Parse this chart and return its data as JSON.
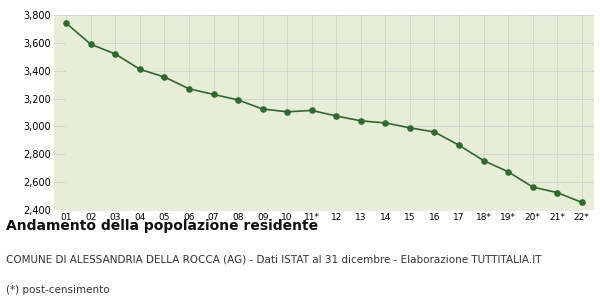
{
  "x_labels": [
    "01",
    "02",
    "03",
    "04",
    "05",
    "06",
    "07",
    "08",
    "09",
    "10",
    "11*",
    "12",
    "13",
    "14",
    "15",
    "16",
    "17",
    "18*",
    "19*",
    "20*",
    "21*",
    "22*"
  ],
  "values": [
    3740,
    3590,
    3520,
    3410,
    3355,
    3270,
    3230,
    3190,
    3125,
    3105,
    3115,
    3075,
    3040,
    3025,
    2990,
    2960,
    2865,
    2755,
    2675,
    2565,
    2525,
    2455
  ],
  "line_color": "#2d6a2d",
  "fill_color": "#e8edd8",
  "dot_color": "#2d6a2d",
  "bg_color": "#ffffff",
  "grid_color": "#cccccc",
  "ylim": [
    2400,
    3800
  ],
  "yticks": [
    2400,
    2600,
    2800,
    3000,
    3200,
    3400,
    3600,
    3800
  ],
  "title": "Andamento della popolazione residente",
  "subtitle": "COMUNE DI ALESSANDRIA DELLA ROCCA (AG) - Dati ISTAT al 31 dicembre - Elaborazione TUTTITALIA.IT",
  "footnote": "(*) post-censimento",
  "title_fontsize": 10,
  "subtitle_fontsize": 7.5,
  "footnote_fontsize": 7.5
}
